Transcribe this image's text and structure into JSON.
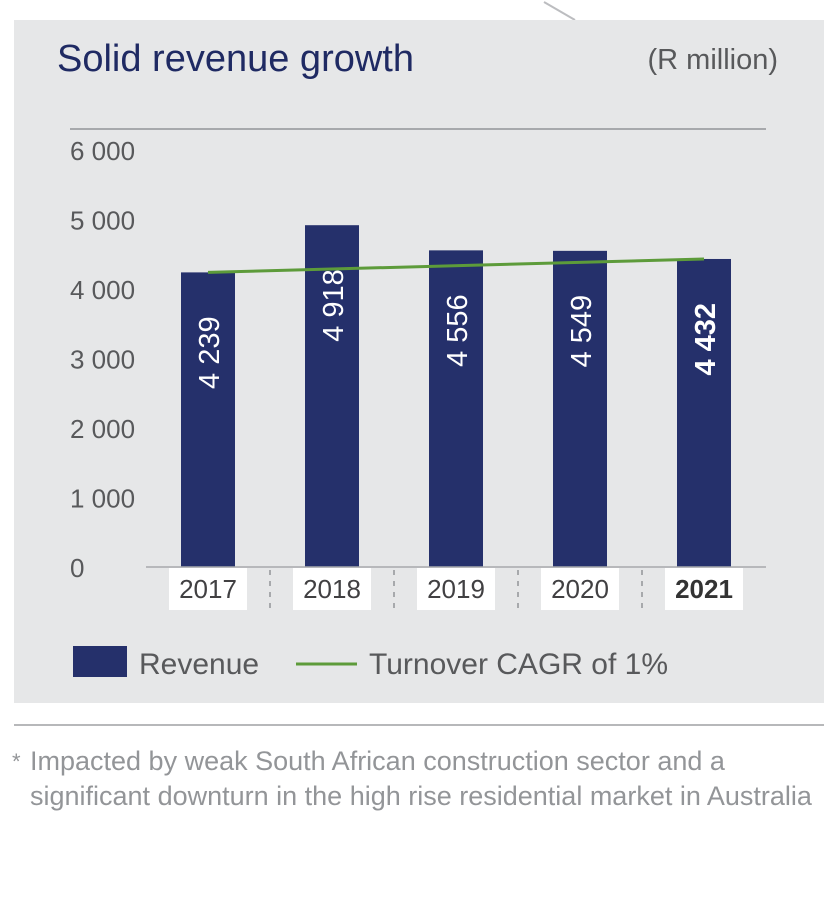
{
  "header": {
    "title": "Solid revenue growth",
    "unit": "(R million)"
  },
  "chart_data": {
    "type": "bar",
    "categories": [
      "2017",
      "2018",
      "2019",
      "2020",
      "2021"
    ],
    "series": [
      {
        "name": "Revenue",
        "values": [
          4239,
          4918,
          4556,
          4549,
          4432
        ],
        "value_labels": [
          "4 239",
          "4 918",
          "4 556",
          "4 549",
          "4 432"
        ],
        "color": "#25306b"
      },
      {
        "name": "Turnover CAGR of 1%",
        "type": "line",
        "values": [
          4239,
          4300,
          4345,
          4390,
          4432
        ],
        "color": "#5d9b3a"
      }
    ],
    "y_ticks": [
      0,
      1000,
      2000,
      3000,
      4000,
      5000,
      6000
    ],
    "y_tick_labels": [
      "0",
      "1 000",
      "2 000",
      "3 000",
      "4 000",
      "5 000",
      "6 000"
    ],
    "ylim": [
      0,
      6000
    ],
    "highlight_category": "2021",
    "legend_position": "bottom",
    "grid": false
  },
  "legend": {
    "revenue_label": "Revenue",
    "cagr_label": "Turnover CAGR of 1%"
  },
  "footnote": {
    "mark": "*",
    "text": "Impacted by weak South African construction sector and a significant downturn in the high rise residential market in Australia"
  },
  "colors": {
    "panel_bg": "#e6e7e8",
    "bar": "#25306b",
    "line": "#5d9b3a",
    "title": "#1f2a63",
    "text": "#58595b",
    "footnote": "#939598"
  }
}
